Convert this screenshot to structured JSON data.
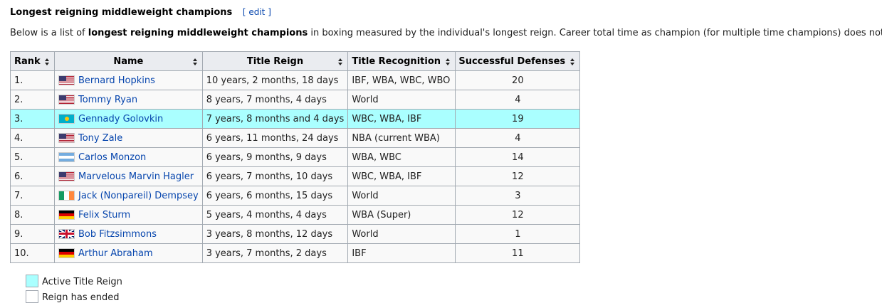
{
  "heading": {
    "title": "Longest reigning middleweight champions",
    "edit_label": "edit"
  },
  "intro": {
    "before": "Below is a list of ",
    "bold": "longest reigning middleweight champions",
    "after": " in boxing measured by the individual's longest reign. Career total time as champion (for multiple time champions) does not apply."
  },
  "table": {
    "headers": [
      "Rank",
      "Name",
      "Title Reign",
      "Title Recognition",
      "Successful Defenses"
    ],
    "rows": [
      {
        "rank": "1.",
        "flag": "us-flag",
        "name": "Bernard Hopkins",
        "reign": "10 years, 2 months, 18 days",
        "recognition": "IBF, WBA, WBC, WBO",
        "defenses": "20"
      },
      {
        "rank": "2.",
        "flag": "us-flag",
        "name": "Tommy Ryan",
        "reign": "8 years, 7 months, 4 days",
        "recognition": "World",
        "defenses": "4"
      },
      {
        "rank": "3.",
        "flag": "kz-flag",
        "name": "Gennady Golovkin",
        "reign": "7 years, 8 months and 4 days",
        "recognition": "WBC, WBA, IBF",
        "defenses": "19",
        "active": true
      },
      {
        "rank": "4.",
        "flag": "us-flag",
        "name": "Tony Zale",
        "reign": "6 years, 11 months, 24 days",
        "recognition": "NBA (current WBA)",
        "defenses": "4"
      },
      {
        "rank": "5.",
        "flag": "ar-flag",
        "name": "Carlos Monzon",
        "reign": "6 years, 9 months, 9 days",
        "recognition": "WBA, WBC",
        "defenses": "14"
      },
      {
        "rank": "6.",
        "flag": "us-flag",
        "name": "Marvelous Marvin Hagler",
        "reign": "6 years, 7 months, 10 days",
        "recognition": "WBC, WBA, IBF",
        "defenses": "12"
      },
      {
        "rank": "7.",
        "flag": "ie-flag",
        "name": "Jack (Nonpareil) Dempsey",
        "reign": "6 years, 6 months, 15 days",
        "recognition": "World",
        "defenses": "3"
      },
      {
        "rank": "8.",
        "flag": "de-flag",
        "name": "Felix Sturm",
        "reign": "5 years, 4 months, 4 days",
        "recognition": "WBA (Super)",
        "defenses": "12"
      },
      {
        "rank": "9.",
        "flag": "gb-flag",
        "name": "Bob Fitzsimmons",
        "reign": "3 years, 8 months, 12 days",
        "recognition": "World",
        "defenses": "1"
      },
      {
        "rank": "10.",
        "flag": "de-flag",
        "name": "Arthur Abraham",
        "reign": "3 years, 7 months, 2 days",
        "recognition": "IBF",
        "defenses": "11"
      }
    ]
  },
  "legend": {
    "items": [
      {
        "label": "Active Title Reign",
        "color": "#aaffff"
      },
      {
        "label": "Reign has ended",
        "color": "#ffffff"
      }
    ]
  },
  "colors": {
    "active_row": "#aaffff",
    "link": "#0645ad",
    "header_bg": "#eaecf0",
    "border": "#a2a9b1"
  }
}
